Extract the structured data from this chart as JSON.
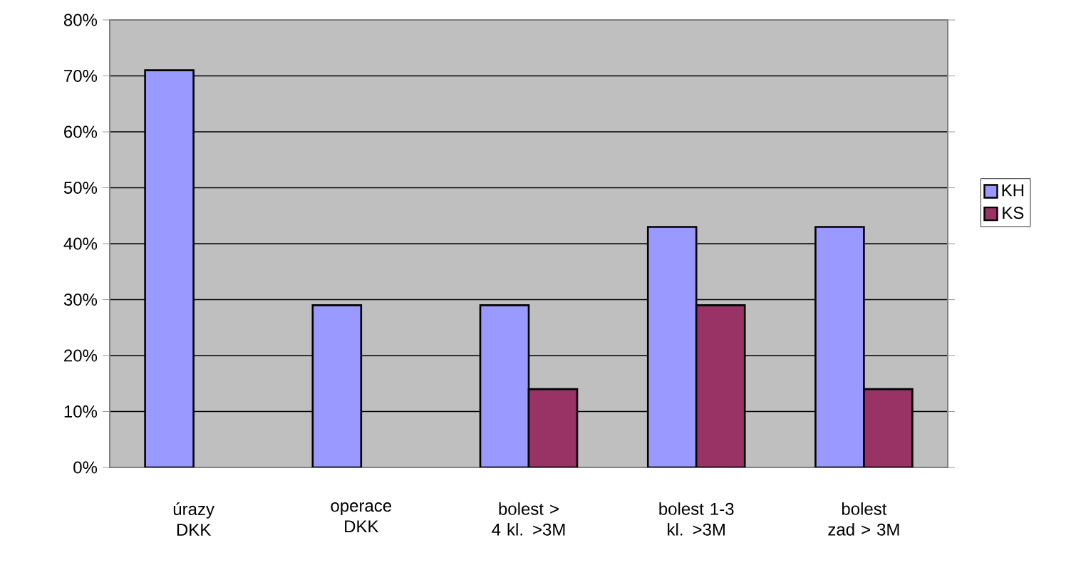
{
  "chart_data": {
    "type": "bar",
    "categories": [
      "úrazy DKK",
      "operace DKK",
      "bolest > 4 kl. >3M",
      "bolest 1-3 kl. >3M",
      "bolest zad > 3M"
    ],
    "series": [
      {
        "name": "KH",
        "color": "#9999ff",
        "values": [
          71,
          29,
          29,
          43,
          43
        ]
      },
      {
        "name": "KS",
        "color": "#993366",
        "values": [
          null,
          null,
          14,
          29,
          14
        ]
      }
    ],
    "ylim": [
      0,
      80
    ],
    "yticks": [
      {
        "value": 0,
        "label": "0%"
      },
      {
        "value": 10,
        "label": "10%"
      },
      {
        "value": 20,
        "label": "20%"
      },
      {
        "value": 30,
        "label": "30%"
      },
      {
        "value": 40,
        "label": "40%"
      },
      {
        "value": 50,
        "label": "50%"
      },
      {
        "value": 60,
        "label": "60%"
      },
      {
        "value": 70,
        "label": "70%"
      },
      {
        "value": 80,
        "label": "80%"
      }
    ],
    "grid": "y",
    "legend": "right"
  }
}
